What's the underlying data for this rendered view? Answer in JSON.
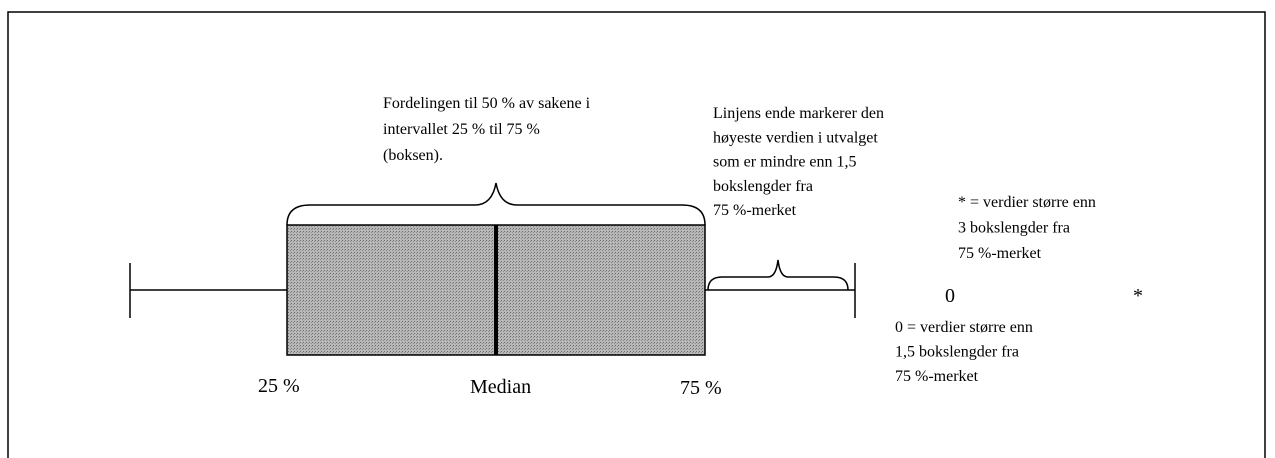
{
  "box_note": [
    "Fordelingen til 50 % av sakene i",
    "intervallet 25 % til 75 %",
    "(boksen)."
  ],
  "whisker_note": [
    "Linjens ende markerer den",
    "høyeste verdien i utvalget",
    "som er mindre enn 1,5",
    "bokslengder  fra",
    "75 %-merket"
  ],
  "extreme_note": [
    "* = verdier større enn",
    "3 bokslengder fra",
    "75 %-merket"
  ],
  "outlier_symbol": "0",
  "extreme_symbol": "*",
  "outlier_note": [
    "0 = verdier større enn",
    "1,5 bokslengder fra",
    "75 %-merket"
  ],
  "axis_labels": [
    "25 %",
    "Median",
    "75 %"
  ]
}
